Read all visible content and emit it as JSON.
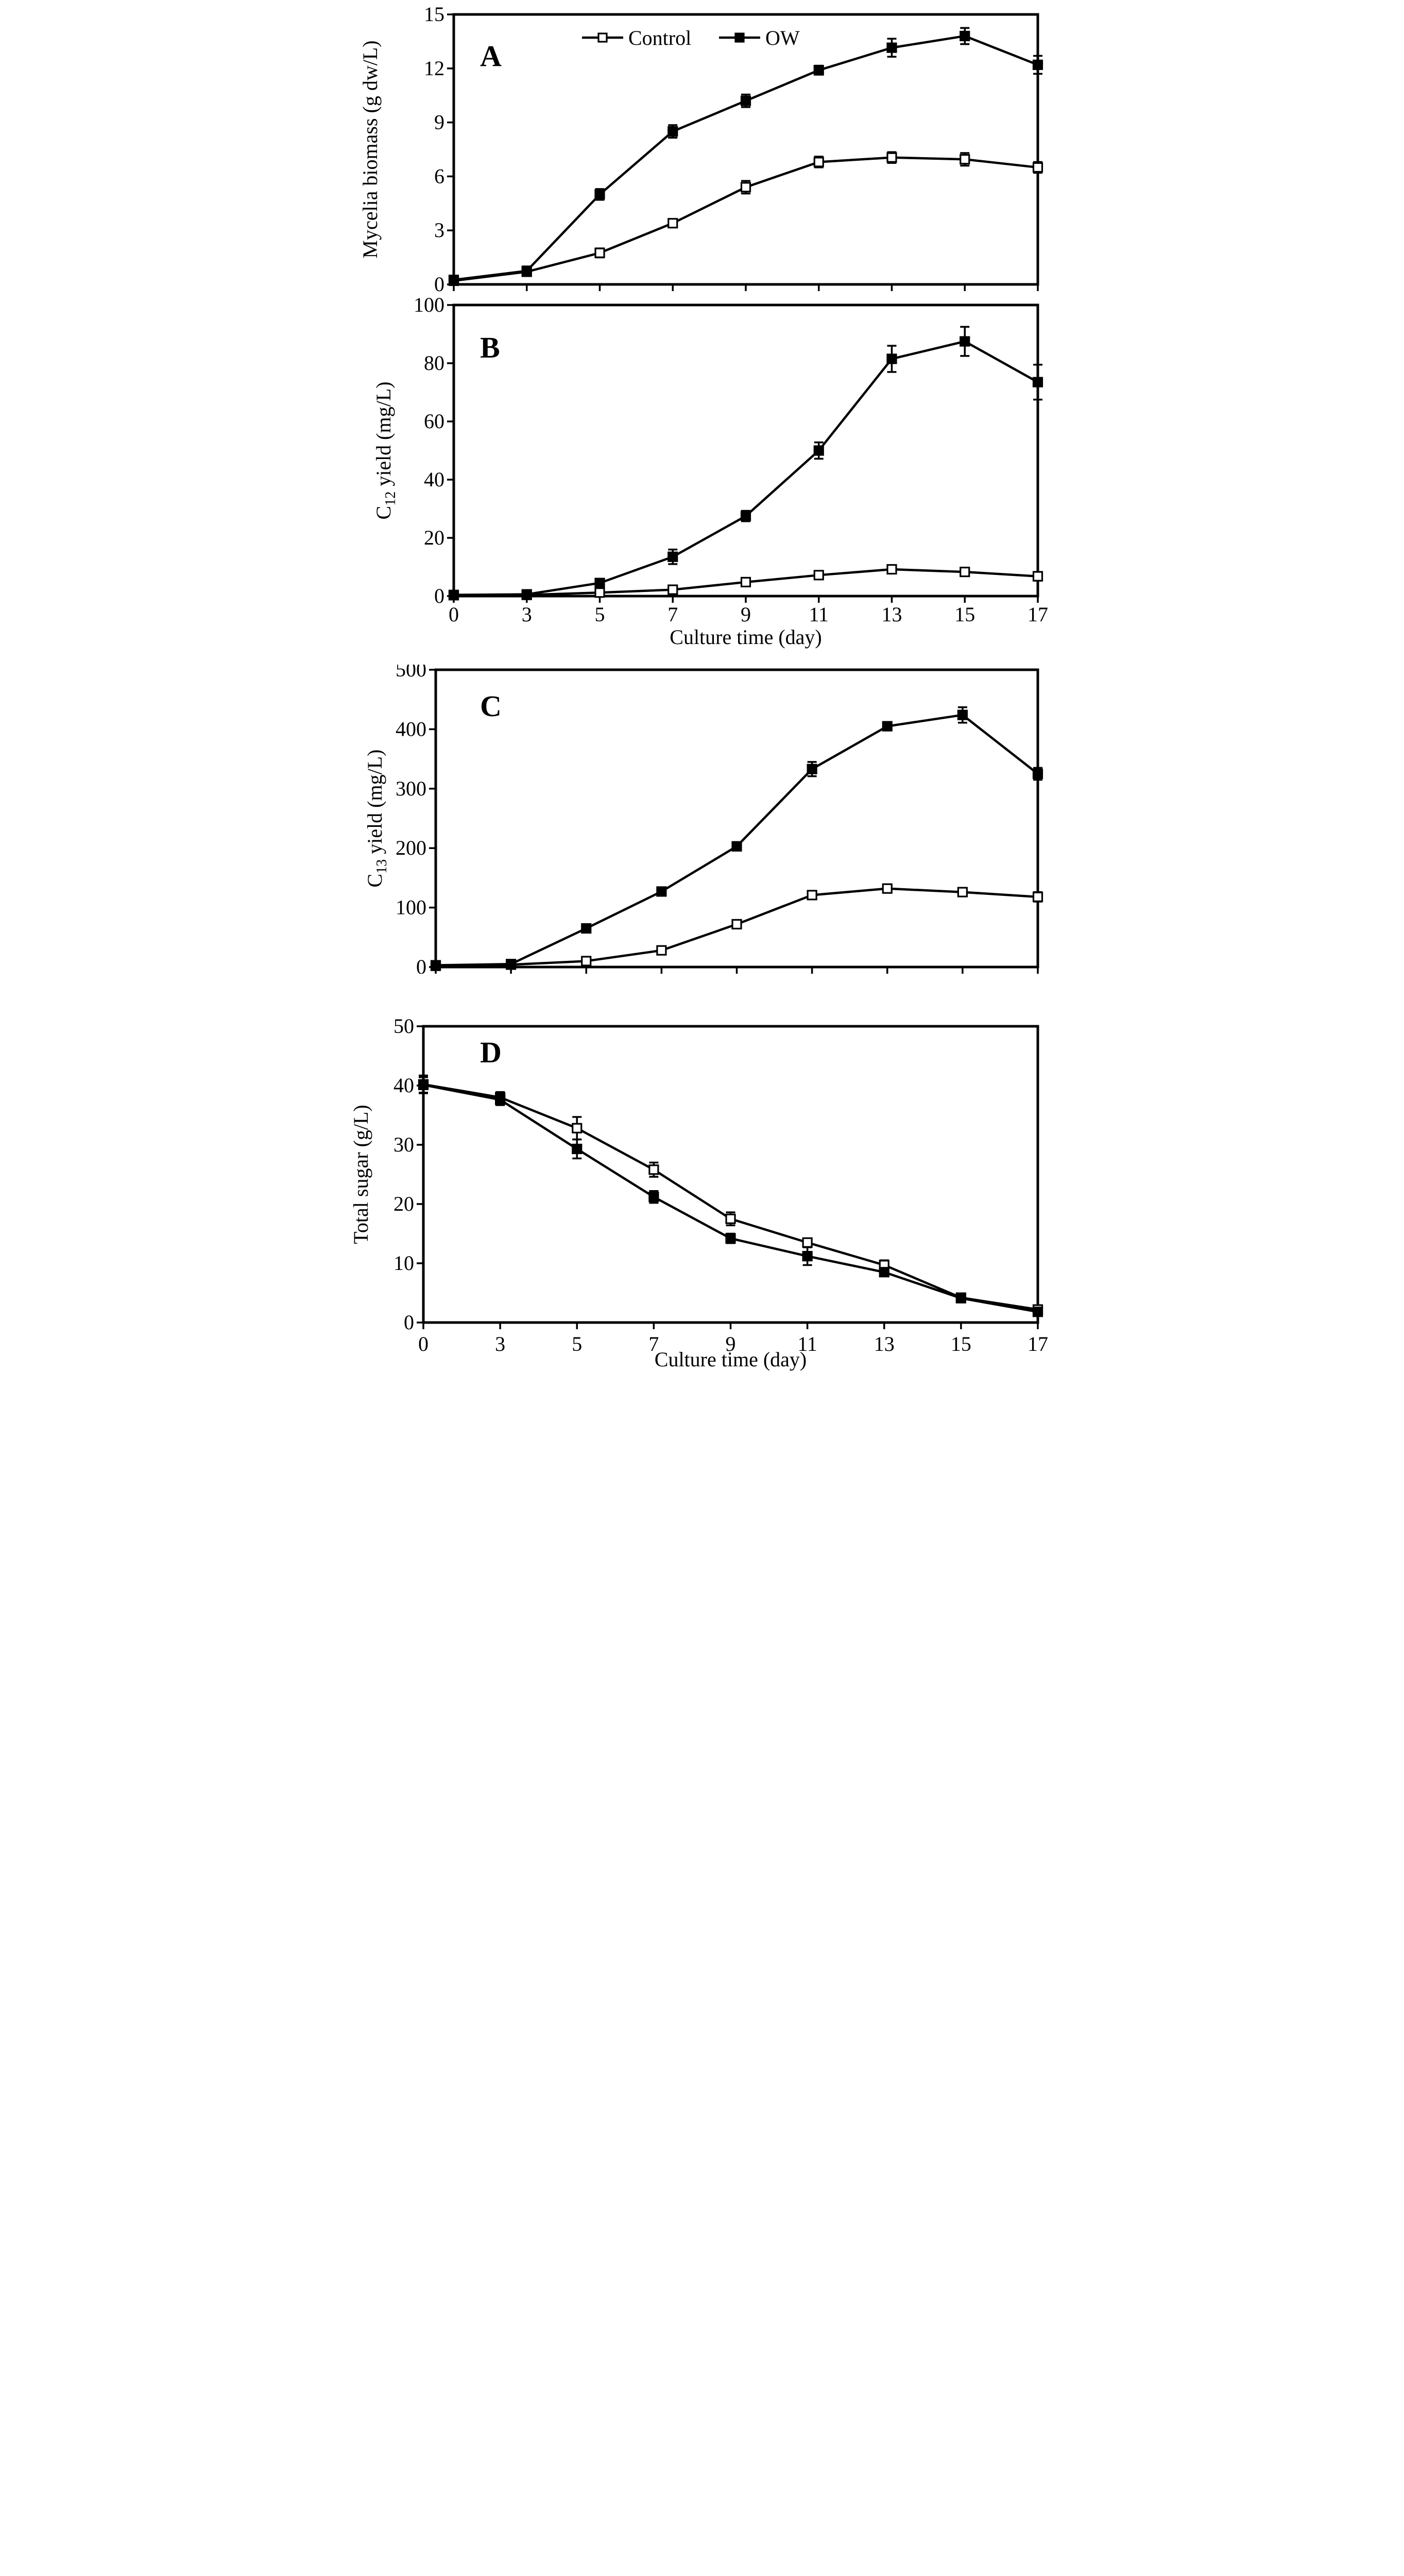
{
  "figure": {
    "x_axis_title": "Culture time (day)",
    "x_tick_labels": [
      "0",
      "3",
      "5",
      "7",
      "9",
      "11",
      "13",
      "15",
      "17"
    ],
    "colors": {
      "foreground": "#000000",
      "background": "#ffffff"
    },
    "legend": {
      "entries": [
        "Control",
        "OW"
      ]
    }
  },
  "chart_data": [
    {
      "type": "line",
      "panel": "A",
      "ylabel_parts": [
        {
          "text": "Mycelia biomass (g dw/L)"
        }
      ],
      "ylim": [
        0,
        15
      ],
      "yticks": [
        0,
        3,
        6,
        9,
        12,
        15
      ],
      "x": [
        0,
        3,
        5,
        7,
        9,
        11,
        13,
        15,
        17
      ],
      "show_x_tick_labels": false,
      "show_x_axis_title": false,
      "show_legend": true,
      "legend_position": "top-center-inside",
      "grid": false,
      "series": [
        {
          "name": "Control",
          "marker": "open-square",
          "values": [
            0.2,
            0.7,
            1.75,
            3.4,
            5.4,
            6.8,
            7.05,
            6.95,
            6.5
          ],
          "errors": [
            0.1,
            0.2,
            0.25,
            0.2,
            0.35,
            0.3,
            0.3,
            0.35,
            0.3
          ]
        },
        {
          "name": "OW",
          "marker": "filled-square",
          "values": [
            0.25,
            0.75,
            5.0,
            8.5,
            10.2,
            11.9,
            13.15,
            13.8,
            12.2
          ],
          "errors": [
            0.2,
            0.25,
            0.3,
            0.35,
            0.35,
            0.25,
            0.5,
            0.45,
            0.5
          ]
        }
      ]
    },
    {
      "type": "line",
      "panel": "B",
      "ylabel_parts": [
        {
          "text": "C"
        },
        {
          "text": "12",
          "sub": true
        },
        {
          "text": " yield (mg/L)"
        }
      ],
      "ylim": [
        0,
        100
      ],
      "yticks": [
        0,
        20,
        40,
        60,
        80,
        100
      ],
      "x": [
        0,
        3,
        5,
        7,
        9,
        11,
        13,
        15,
        17
      ],
      "show_x_tick_labels": true,
      "show_x_axis_title": true,
      "show_legend": false,
      "grid": false,
      "series": [
        {
          "name": "Control",
          "marker": "open-square",
          "values": [
            0.3,
            0.4,
            1.2,
            2.2,
            4.8,
            7.2,
            9.2,
            8.3,
            6.8
          ],
          "errors": [
            0.3,
            0.3,
            0.5,
            0.6,
            0.8,
            0.8,
            1.0,
            0.8,
            1.5
          ]
        },
        {
          "name": "OW",
          "marker": "filled-square",
          "values": [
            0.4,
            0.6,
            4.5,
            13.5,
            27.5,
            50.0,
            81.5,
            87.5,
            73.5
          ],
          "errors": [
            0.5,
            0.5,
            1.2,
            2.5,
            1.8,
            2.8,
            4.5,
            5.0,
            6.0
          ]
        }
      ]
    },
    {
      "type": "line",
      "panel": "C",
      "ylabel_parts": [
        {
          "text": "C"
        },
        {
          "text": "13",
          "sub": true
        },
        {
          "text": " yield (mg/L)"
        }
      ],
      "ylim": [
        0,
        500
      ],
      "yticks": [
        0,
        100,
        200,
        300,
        400,
        500
      ],
      "x": [
        0,
        3,
        5,
        7,
        9,
        11,
        13,
        15,
        17
      ],
      "show_x_tick_labels": false,
      "show_x_axis_title": false,
      "show_legend": false,
      "grid": false,
      "series": [
        {
          "name": "Control",
          "marker": "open-square",
          "values": [
            2,
            4,
            10,
            28,
            72,
            121,
            132,
            126,
            118
          ],
          "errors": [
            1,
            1,
            2,
            4,
            5,
            5,
            5,
            6,
            8
          ]
        },
        {
          "name": "OW",
          "marker": "filled-square",
          "values": [
            3,
            5,
            65,
            127,
            203,
            333,
            405,
            424,
            325
          ],
          "errors": [
            2,
            2,
            5,
            6,
            7,
            12,
            7,
            13,
            10
          ]
        }
      ]
    },
    {
      "type": "line",
      "panel": "D",
      "ylabel_parts": [
        {
          "text": "Total sugar (g/L)"
        }
      ],
      "ylim": [
        0,
        50
      ],
      "yticks": [
        0,
        10,
        20,
        30,
        40,
        50
      ],
      "x": [
        0,
        3,
        5,
        7,
        9,
        11,
        13,
        15,
        17
      ],
      "show_x_tick_labels": true,
      "show_x_axis_title": true,
      "show_legend": false,
      "grid": false,
      "series": [
        {
          "name": "Control",
          "marker": "open-square",
          "values": [
            40.2,
            38.0,
            32.8,
            25.8,
            17.5,
            13.5,
            9.7,
            4.2,
            2.2
          ],
          "errors": [
            1.5,
            0.9,
            1.9,
            1.2,
            1.1,
            0.7,
            0.8,
            0.5,
            0.6
          ]
        },
        {
          "name": "OW",
          "marker": "filled-square",
          "values": [
            40.1,
            37.6,
            29.3,
            21.2,
            14.2,
            11.2,
            8.5,
            4.1,
            1.8
          ],
          "errors": [
            1.3,
            0.9,
            1.6,
            1.0,
            0.8,
            1.5,
            0.5,
            0.5,
            0.5
          ]
        }
      ]
    }
  ]
}
